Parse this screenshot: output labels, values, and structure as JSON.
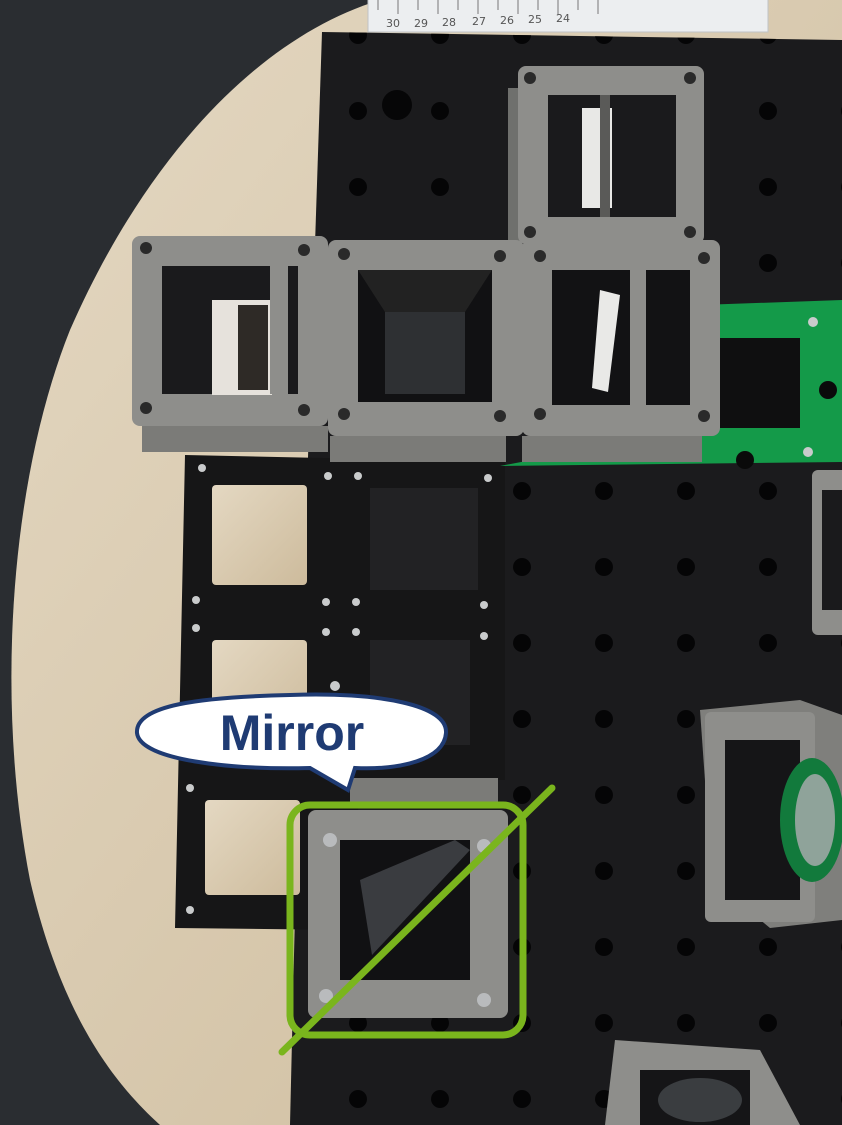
{
  "annotation": {
    "label": "Mirror",
    "label_color": "#1f3b73",
    "highlight_color": "#7ab51d"
  },
  "ruler": {
    "ticks": [
      "30",
      "29",
      "28",
      "27",
      "26",
      "25",
      "24"
    ]
  },
  "colors": {
    "breadboard": "#1b1b1d",
    "cube": "#8e8e8b",
    "green_rail": "#149a49",
    "table": "#d8c9ae"
  }
}
